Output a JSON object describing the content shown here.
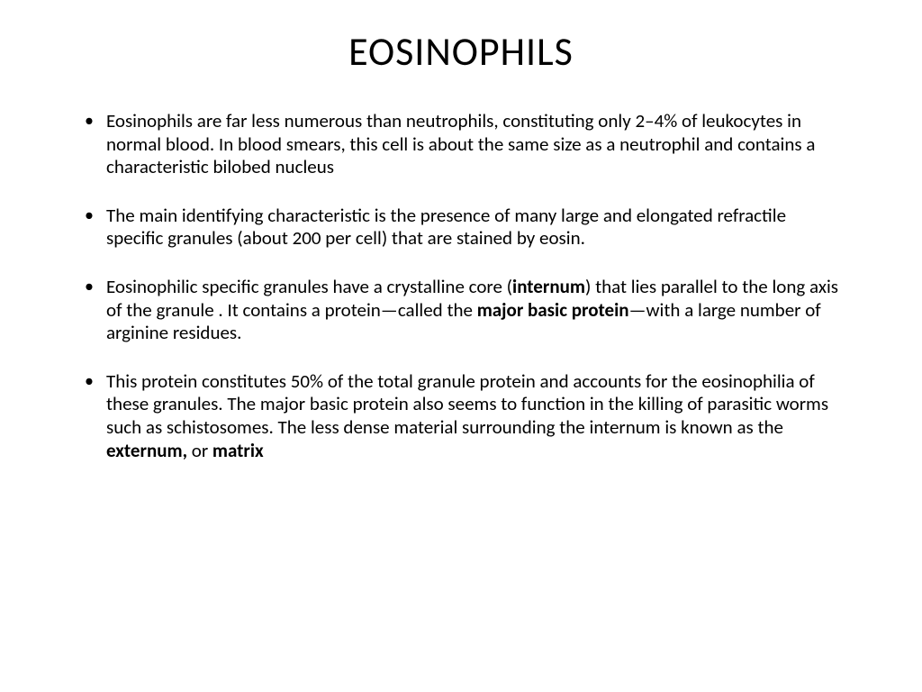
{
  "slide": {
    "title": "EOSINOPHILS",
    "title_fontsize": 44,
    "body_fontsize": 21,
    "background_color": "#ffffff",
    "text_color": "#000000",
    "bullets": [
      {
        "runs": [
          {
            "t": "Eosinophils are far less numerous than neutrophils, constituting only 2–4% of leukocytes in normal blood. In blood smears, this cell is about the same size as a neutrophil and contains a characteristic bilobed nucleus",
            "bold": false
          }
        ]
      },
      {
        "runs": [
          {
            "t": "The main identifying characteristic is the presence of many large and elongated refractile specific granules (about 200 per cell) that are stained by eosin.",
            "bold": false
          }
        ]
      },
      {
        "runs": [
          {
            "t": "Eosinophilic specific granules have a crystalline core (",
            "bold": false
          },
          {
            "t": "internum",
            "bold": true
          },
          {
            "t": ") that lies parallel to the long axis of the granule . It contains a protein—called the ",
            "bold": false
          },
          {
            "t": "major basic protein",
            "bold": true
          },
          {
            "t": "—with a large number of arginine residues.",
            "bold": false
          }
        ]
      },
      {
        "runs": [
          {
            "t": "This protein constitutes 50% of the total granule protein and accounts for the eosinophilia of these granules. The major basic protein also seems to function in the killing of parasitic worms such as schistosomes. The less dense material surrounding the internum is known as the ",
            "bold": false
          },
          {
            "t": "externum,",
            "bold": true
          },
          {
            "t": " or ",
            "bold": false
          },
          {
            "t": "matrix",
            "bold": true
          }
        ]
      }
    ]
  }
}
